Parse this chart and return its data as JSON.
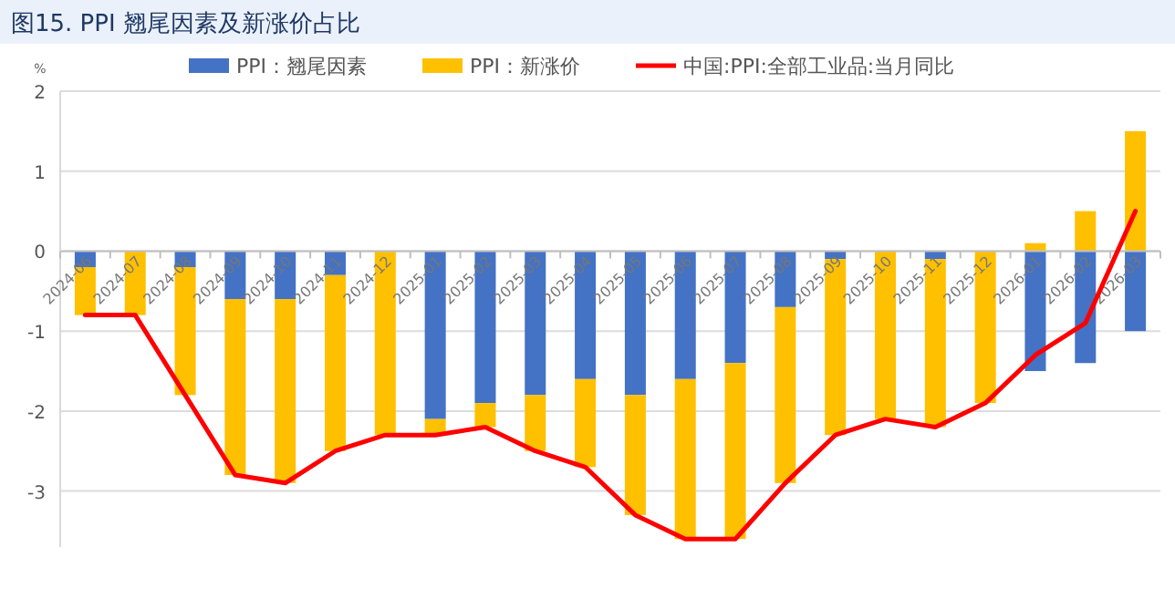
{
  "chart_data": {
    "type": "bar",
    "stacked": true,
    "title": "图15. PPI 翘尾因素及新涨价占比",
    "ylabel": "%",
    "categories": [
      "2024-06",
      "2024-07",
      "2024-08",
      "2024-09",
      "2024-10",
      "2024-11",
      "2024-12",
      "2025-01",
      "2025-02",
      "2025-03",
      "2025-04",
      "2025-05",
      "2025-06",
      "2025-07",
      "2025-08",
      "2025-09",
      "2025-10",
      "2025-11",
      "2025-12",
      "2026-01",
      "2026-02",
      "2026-03"
    ],
    "series": [
      {
        "name": "PPI：翘尾因素",
        "color": "#4472c4",
        "values": [
          -0.2,
          0,
          -0.2,
          -0.6,
          -0.6,
          -0.3,
          0,
          -2.1,
          -1.9,
          -1.8,
          -1.6,
          -1.8,
          -1.6,
          -1.4,
          -0.7,
          -0.1,
          0,
          -0.1,
          0,
          -1.5,
          -1.4,
          -1.0
        ]
      },
      {
        "name": "PPI：新涨价",
        "color": "#ffc000",
        "values": [
          -0.6,
          -0.8,
          -1.6,
          -2.2,
          -2.3,
          -2.2,
          -2.3,
          -0.2,
          -0.3,
          -0.7,
          -1.1,
          -1.5,
          -2.0,
          -2.2,
          -2.2,
          -2.2,
          -2.1,
          -2.1,
          -1.9,
          0.1,
          0.5,
          1.5
        ]
      },
      {
        "name": "中国:PPI:全部工业品:当月同比",
        "type": "line",
        "color": "#ff0000",
        "values": [
          -0.8,
          -0.8,
          -1.8,
          -2.8,
          -2.9,
          -2.5,
          -2.3,
          -2.3,
          -2.2,
          -2.5,
          -2.7,
          -3.3,
          -3.6,
          -3.6,
          -2.9,
          -2.3,
          -2.1,
          -2.2,
          -1.9,
          -1.3,
          -0.9,
          0.5
        ]
      }
    ],
    "ylim": [
      -3.7,
      2
    ],
    "yticks": [
      -3,
      -2,
      -1,
      0,
      1,
      2
    ],
    "grid": "y",
    "legend": "top"
  }
}
